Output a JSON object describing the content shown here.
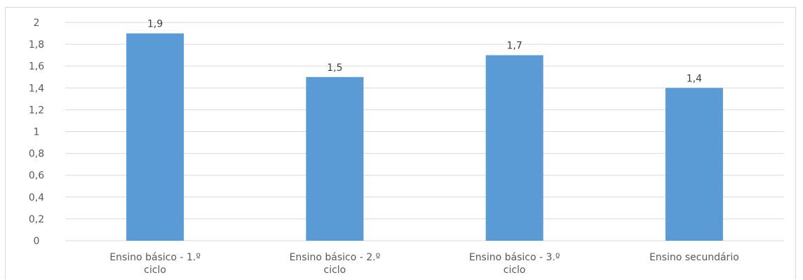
{
  "chart_data": {
    "type": "bar",
    "categories": [
      [
        "Ensino básico - 1.º",
        "ciclo"
      ],
      [
        "Ensino básico - 2.º",
        "ciclo"
      ],
      [
        "Ensino básico - 3.º",
        "ciclo"
      ],
      [
        "Ensino secundário"
      ]
    ],
    "values": [
      1.9,
      1.5,
      1.7,
      1.4
    ],
    "value_labels": [
      "1,9",
      "1,5",
      "1,7",
      "1,4"
    ],
    "y_ticks": [
      {
        "value": 0,
        "label": "0"
      },
      {
        "value": 0.2,
        "label": "0,2"
      },
      {
        "value": 0.4,
        "label": "0,4"
      },
      {
        "value": 0.6,
        "label": "0,6"
      },
      {
        "value": 0.8,
        "label": "0,8"
      },
      {
        "value": 1,
        "label": "1"
      },
      {
        "value": 1.2,
        "label": "1,2"
      },
      {
        "value": 1.4,
        "label": "1,4"
      },
      {
        "value": 1.6,
        "label": "1,6"
      },
      {
        "value": 1.8,
        "label": "1,8"
      },
      {
        "value": 2,
        "label": "2"
      }
    ],
    "ylim": [
      0,
      2
    ],
    "grid": true,
    "legend": "none",
    "bar_color": "#5b9bd5",
    "grid_color": "#d9d9d9",
    "title": "",
    "xlabel": "",
    "ylabel": ""
  }
}
